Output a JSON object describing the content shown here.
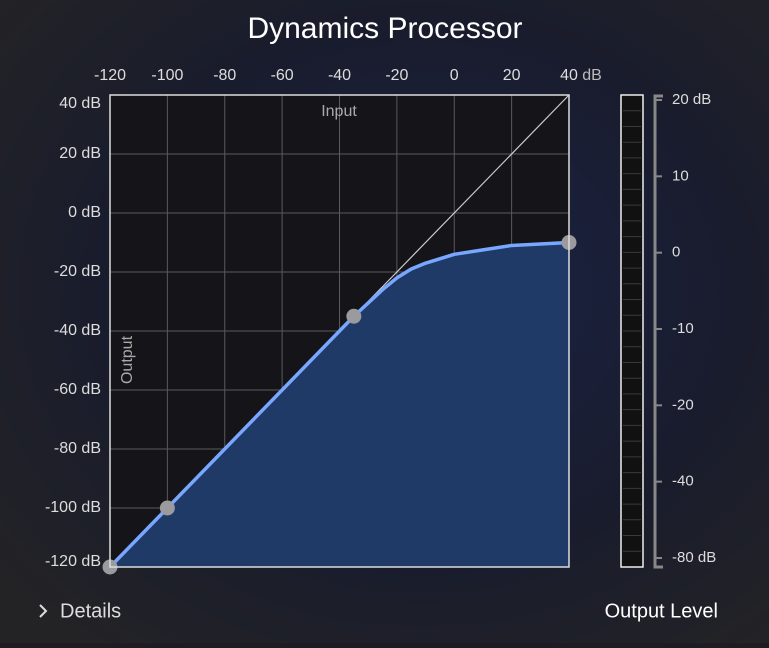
{
  "title": "Dynamics Processor",
  "graph": {
    "input_label": "Input",
    "output_label": "Output",
    "x_unit": "dB",
    "xlim": [
      -120,
      40
    ],
    "xticks": [
      -120,
      -100,
      -80,
      -60,
      -40,
      -20,
      0,
      20,
      40
    ],
    "ylim": [
      -120,
      40
    ],
    "yticks": [
      {
        "value": 40,
        "label": "40 dB"
      },
      {
        "value": 20,
        "label": "20 dB"
      },
      {
        "value": 0,
        "label": "0 dB"
      },
      {
        "value": -20,
        "label": "-20 dB"
      },
      {
        "value": -40,
        "label": "-40 dB"
      },
      {
        "value": -60,
        "label": "-60 dB"
      },
      {
        "value": -80,
        "label": "-80 dB"
      },
      {
        "value": -100,
        "label": "-100 dB"
      },
      {
        "value": -120,
        "label": "-120 dB"
      }
    ],
    "curve": {
      "x": [
        -120,
        -100,
        -35,
        -25,
        -20,
        -15,
        -10,
        0,
        10,
        20,
        30,
        40
      ],
      "y": [
        -120,
        -100,
        -35,
        -26,
        -22,
        -19,
        -17,
        -14,
        -12.5,
        -11,
        -10.5,
        -10
      ]
    },
    "handles": {
      "x": [
        -120,
        -100,
        -35,
        40
      ],
      "y": [
        -120,
        -100,
        -35,
        -10
      ]
    }
  },
  "meter": {
    "ticks": [
      {
        "value": 20,
        "label": "20 dB"
      },
      10,
      0,
      -10,
      -20,
      -40,
      {
        "value": -80,
        "label": "-80 dB"
      }
    ]
  },
  "details": "Details",
  "output_level": "Output Level"
}
